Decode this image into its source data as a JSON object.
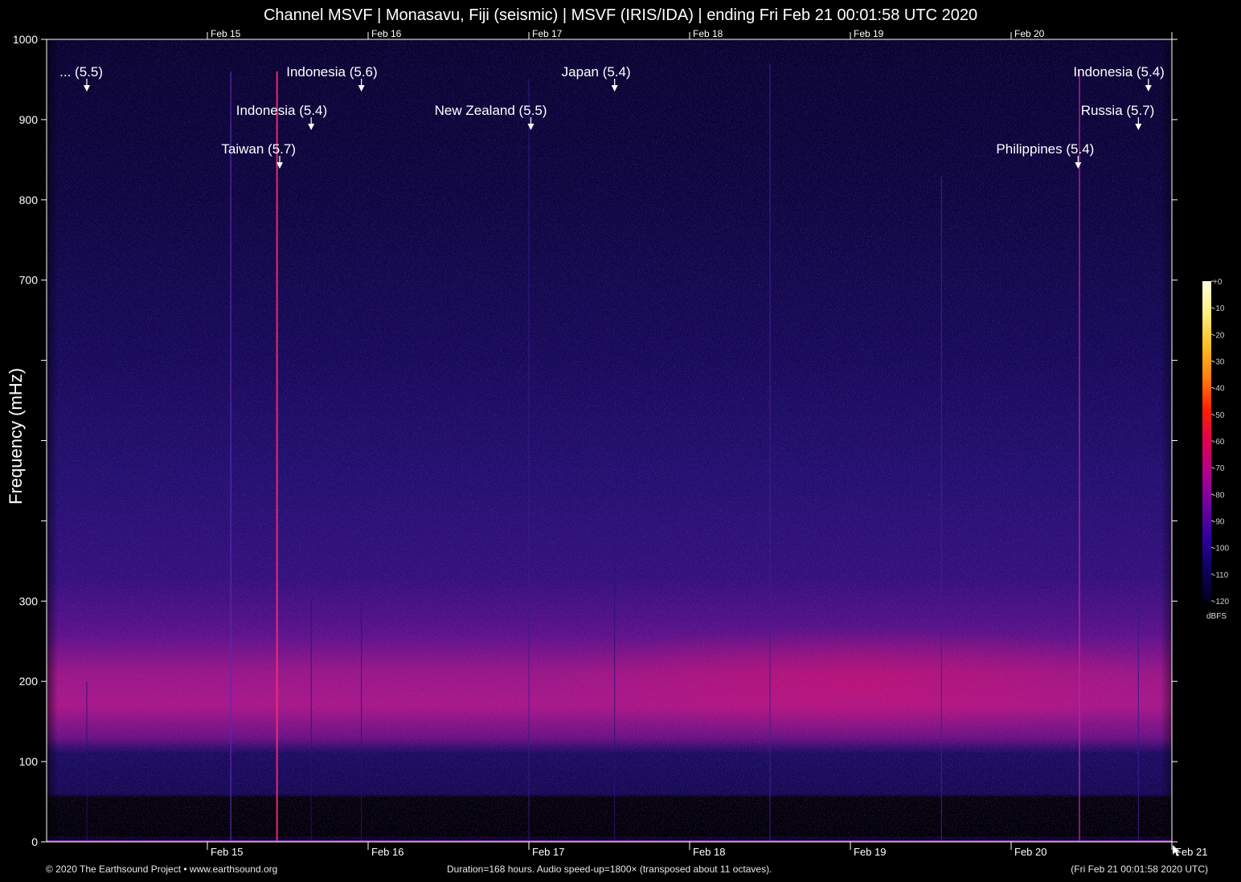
{
  "chart_data": {
    "type": "heatmap",
    "title": "Channel MSVF | Monasavu, Fiji (seismic) | MSVF (IRIS/IDA) | ending Fri Feb 21 00:01:58 UTC 2020",
    "ylabel": "Frequency (mHz)",
    "xlabel": "",
    "ylim": [
      0,
      1000
    ],
    "y_ticks": [
      {
        "value": 0,
        "label": "0"
      },
      {
        "value": 100,
        "label": "100"
      },
      {
        "value": 200,
        "label": "200"
      },
      {
        "value": 300,
        "label": "300"
      },
      {
        "value": 400,
        "label": ""
      },
      {
        "value": 500,
        "label": ""
      },
      {
        "value": 600,
        "label": ""
      },
      {
        "value": 700,
        "label": "700"
      },
      {
        "value": 800,
        "label": "800"
      },
      {
        "value": 900,
        "label": "900"
      },
      {
        "value": 1000,
        "label": "1000"
      }
    ],
    "x_range_hours": [
      0,
      168
    ],
    "x_ticks": [
      {
        "hour": 24,
        "label": "Feb 15"
      },
      {
        "hour": 48,
        "label": "Feb 16"
      },
      {
        "hour": 72,
        "label": "Feb 17"
      },
      {
        "hour": 96,
        "label": "Feb 18"
      },
      {
        "hour": 120,
        "label": "Feb 19"
      },
      {
        "hour": 144,
        "label": "Feb 20"
      },
      {
        "hour": 168,
        "label": "Feb 21"
      }
    ],
    "events": [
      {
        "label": "... (5.5)",
        "hour": 6.0,
        "row": 0
      },
      {
        "label": "Indonesia (5.6)",
        "hour": 47.0,
        "row": 0
      },
      {
        "label": "Japan (5.4)",
        "hour": 84.8,
        "row": 0
      },
      {
        "label": "Indonesia (5.4)",
        "hour": 164.5,
        "row": 0
      },
      {
        "label": "Indonesia (5.4)",
        "hour": 39.5,
        "row": 1
      },
      {
        "label": "New Zealand (5.5)",
        "hour": 72.3,
        "row": 1
      },
      {
        "label": "Russia (5.7)",
        "hour": 163.0,
        "row": 1
      },
      {
        "label": "Taiwan (5.7)",
        "hour": 34.8,
        "row": 2
      },
      {
        "label": "Philippines (5.4)",
        "hour": 154.0,
        "row": 2
      }
    ],
    "colorbar": {
      "unit": "dBFS",
      "range": [
        -120,
        0
      ],
      "ticks": [
        "+0",
        "-10",
        "-20",
        "-30",
        "-40",
        "-50",
        "-60",
        "-70",
        "-80",
        "-90",
        "-100",
        "-110",
        "-120"
      ],
      "colors": [
        "#fffce0",
        "#ffee80",
        "#ffc020",
        "#ff8010",
        "#ff2000",
        "#e00050",
        "#b00090",
        "#7000a0",
        "#3000a0",
        "#100060",
        "#000020"
      ]
    }
  },
  "footer": {
    "copyright": "© 2020 The Earthsound Project • www.earthsound.org",
    "duration": "Duration=168 hours. Audio speed-up=1800× (transposed about 11 octaves).",
    "timestamp": "(Fri Feb 21 00:01:58 2020 UTC)"
  }
}
